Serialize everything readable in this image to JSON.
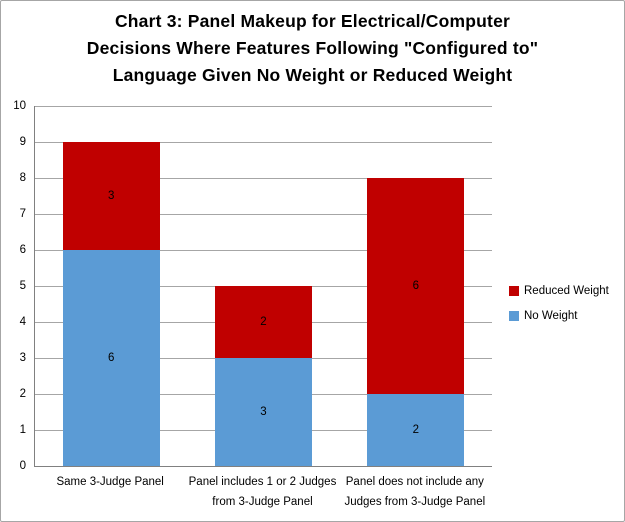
{
  "chart_data": {
    "type": "bar",
    "stacked": true,
    "title": "Chart 3: Panel Makeup for Electrical/Computer\nDecisions Where Features Following \"Configured to\"\nLanguage Given No Weight or Reduced Weight",
    "categories": [
      "Same 3-Judge Panel",
      "Panel includes 1 or 2 Judges from 3-Judge Panel",
      "Panel does not include any Judges from 3-Judge Panel"
    ],
    "category_labels_wrapped": [
      "Same 3-Judge Panel",
      "Panel includes 1 or 2 Judges\nfrom 3-Judge Panel",
      "Panel does not include any\nJudges from 3-Judge Panel"
    ],
    "series": [
      {
        "name": "No Weight",
        "color": "#5B9BD5",
        "values": [
          6,
          3,
          2
        ]
      },
      {
        "name": "Reduced Weight",
        "color": "#C00000",
        "values": [
          3,
          2,
          6
        ]
      }
    ],
    "stack_totals": [
      9,
      5,
      8
    ],
    "xlabel": "",
    "ylabel": "",
    "ylim": [
      0,
      10
    ],
    "ytick_step": 1,
    "ytick_labels": [
      "0",
      "1",
      "2",
      "3",
      "4",
      "5",
      "6",
      "7",
      "8",
      "9",
      "10"
    ],
    "grid": true,
    "legend_position": "right",
    "legend_order": [
      "Reduced Weight",
      "No Weight"
    ]
  },
  "style": {
    "gridline_color": "#a6a6a6",
    "axis_color": "#808080",
    "label_color": "#000000",
    "background": "#ffffff",
    "border_color": "#a6a6a6"
  }
}
